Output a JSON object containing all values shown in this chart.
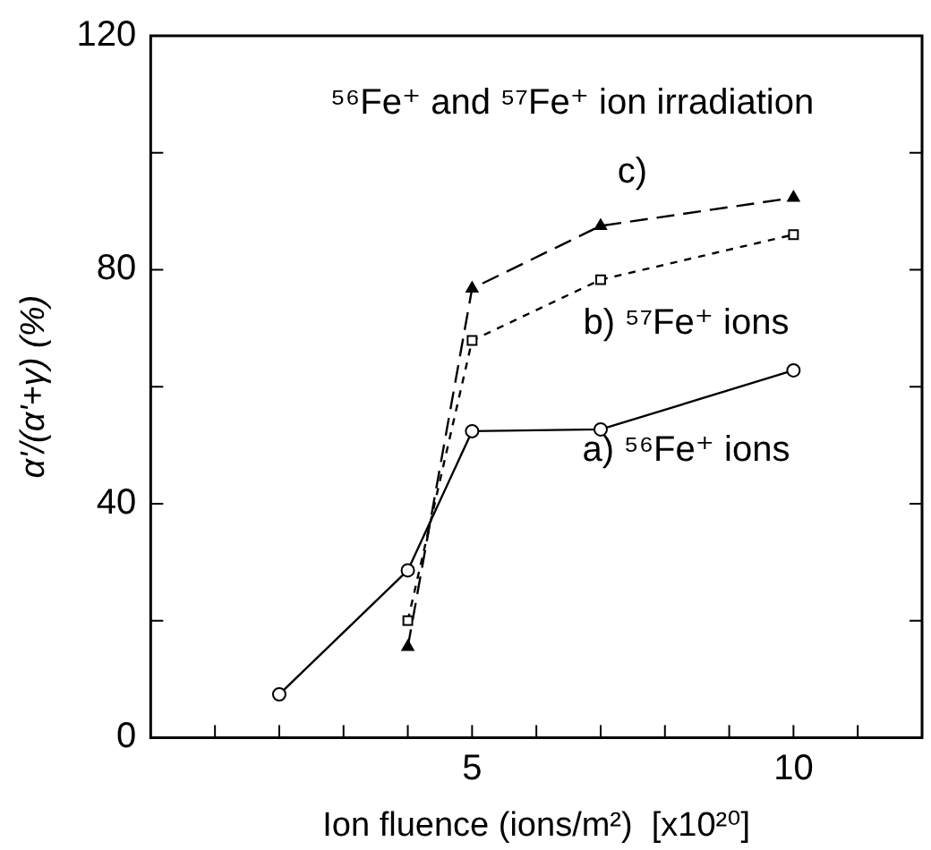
{
  "chart_data": {
    "type": "line",
    "title": "⁵⁶Fe⁺ and ⁵⁷Fe⁺ ion irradiation",
    "xlabel": "Ion fluence (ions/m²)  [x10²⁰]",
    "ylabel": "α'/(α'+γ) (%)",
    "xlim": [
      0,
      12
    ],
    "xticks": [
      {
        "value": 1,
        "label": null
      },
      {
        "value": 2,
        "label": null
      },
      {
        "value": 3,
        "label": null
      },
      {
        "value": 4,
        "label": null
      },
      5,
      {
        "value": 6,
        "label": null
      },
      {
        "value": 7,
        "label": null
      },
      {
        "value": 8,
        "label": null
      },
      {
        "value": 9,
        "label": null
      },
      10,
      {
        "value": 11,
        "label": null
      }
    ],
    "ylim": [
      0,
      120
    ],
    "yticks": [
      0,
      {
        "value": 20,
        "label": null
      },
      40,
      {
        "value": 60,
        "label": null
      },
      80,
      {
        "value": 100,
        "label": null
      },
      120
    ],
    "grid": false,
    "legend": false,
    "series": [
      {
        "name": "a) ⁵⁶Fe⁺ ions",
        "color": "#000000",
        "marker": "circle",
        "line_style": "solid",
        "x": [
          2,
          4,
          5,
          7,
          10
        ],
        "values": [
          7.4,
          28.6,
          52.4,
          52.7,
          62.8
        ]
      },
      {
        "name": "b) ⁵⁷Fe⁺ ions",
        "color": "#000000",
        "marker": "square",
        "line_style": "dotted",
        "x": [
          4,
          5,
          7,
          10
        ],
        "values": [
          20,
          67.9,
          78.3,
          86
        ]
      },
      {
        "name": "c)",
        "color": "#000000",
        "marker": "triangle",
        "line_style": "dashed",
        "x": [
          4,
          5,
          7,
          10
        ],
        "values": [
          15.5,
          76.8,
          87.5,
          92.3
        ]
      }
    ]
  }
}
